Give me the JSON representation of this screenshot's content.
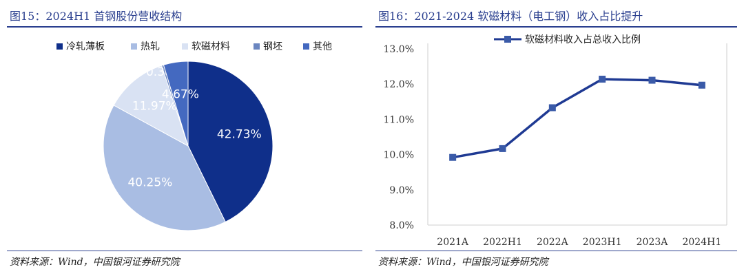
{
  "left": {
    "title": "图15：2024H1 首钢股份营收结构",
    "source": "资料来源：Wind，中国银河证券研究院"
  },
  "right": {
    "title": "图16：2021-2024 软磁材料（电工钢）收入占比提升",
    "source": "资料来源：Wind，中国银河证券研究院"
  },
  "chart_data": [
    {
      "type": "pie",
      "title": "2024H1 首钢股份营收结构",
      "slices": [
        {
          "name": "冷轧薄板",
          "value": 42.73,
          "label": "42.73%",
          "color": "#0f2f8a"
        },
        {
          "name": "热轧",
          "value": 40.25,
          "label": "40.25%",
          "color": "#a9bde3"
        },
        {
          "name": "软磁材料",
          "value": 11.97,
          "label": "11.97%",
          "color": "#d9e2f3"
        },
        {
          "name": "钢坯",
          "value": 0.38,
          "label": "0.38%",
          "color": "#6b86c0"
        },
        {
          "name": "其他",
          "value": 4.67,
          "label": "4.67%",
          "color": "#4469c0"
        }
      ],
      "legend_position": "top"
    },
    {
      "type": "line",
      "title": "2021-2024 软磁材料（电工钢）收入占比提升",
      "categories": [
        "2021A",
        "2022H1",
        "2022A",
        "2023H1",
        "2023A",
        "2024H1"
      ],
      "series": [
        {
          "name": "软磁材料收入占总收入比例",
          "values": [
            9.92,
            10.17,
            11.33,
            12.14,
            12.11,
            11.97
          ],
          "color": "#1f3a93"
        }
      ],
      "yticks": [
        "8.0%",
        "9.0%",
        "10.0%",
        "11.0%",
        "12.0%",
        "13.0%"
      ],
      "ylim": [
        8.0,
        13.0
      ],
      "legend_position": "top"
    }
  ]
}
